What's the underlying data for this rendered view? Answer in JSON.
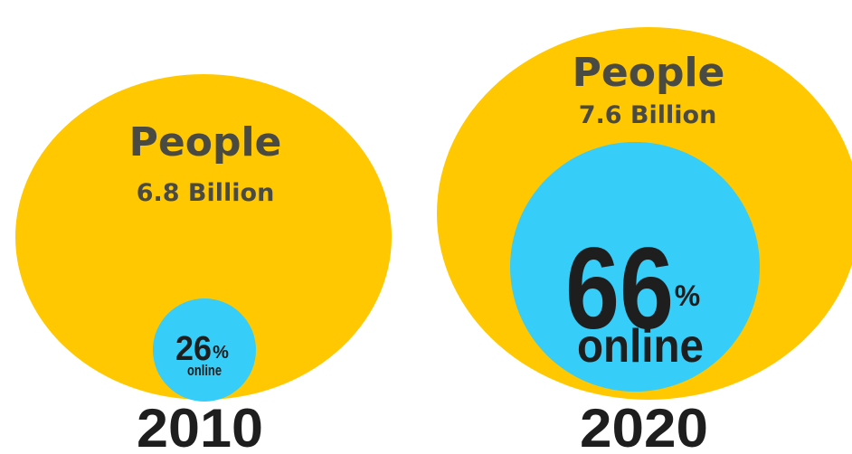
{
  "chart_data": {
    "type": "bubble",
    "title": "",
    "colors": {
      "people": "#FFC800",
      "online": "#36CDF8",
      "text_dark": "#1E1E1E",
      "text_people": "#4A4A45"
    },
    "groups": [
      {
        "year": "2010",
        "people_word": "People",
        "people_value": "6.8 Billion",
        "people_billions": 6.8,
        "online_percent": 26,
        "online_number": "26",
        "percent_sign": "%",
        "online_word": "online"
      },
      {
        "year": "2020",
        "people_word": "People",
        "people_value": "7.6 Billion",
        "people_billions": 7.6,
        "online_percent": 66,
        "online_number": "66",
        "percent_sign": "%",
        "online_word": "online"
      }
    ]
  }
}
